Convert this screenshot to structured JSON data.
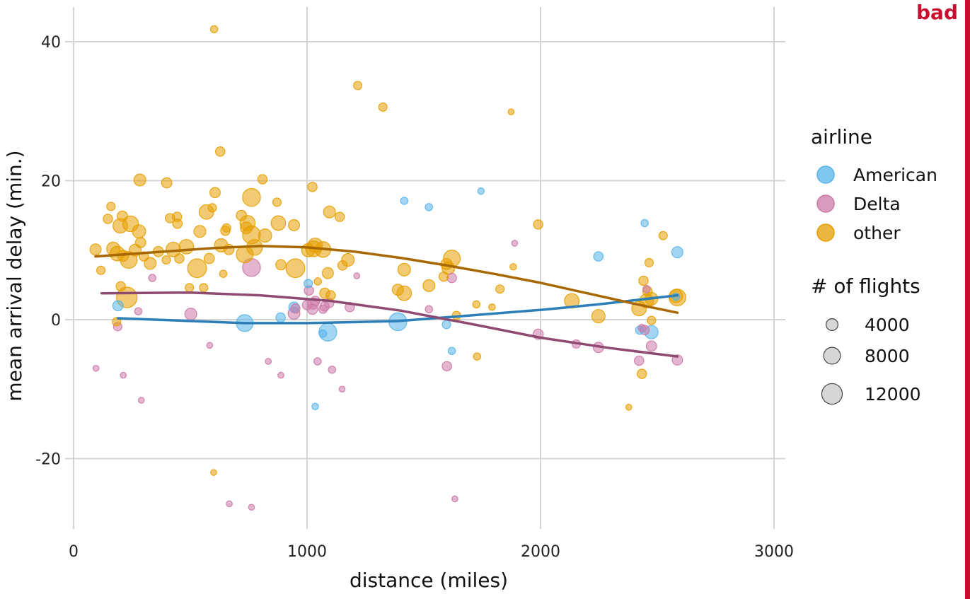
{
  "badge": "bad",
  "chart_data": {
    "type": "scatter",
    "xlabel": "distance (miles)",
    "ylabel": "mean arrival delay (min.)",
    "xlim": [
      0,
      3000
    ],
    "ylim": [
      -30,
      45
    ],
    "x_ticks": [
      0,
      1000,
      2000,
      3000
    ],
    "x_tick_labels": [
      "0",
      "1000",
      "2000",
      "3000"
    ],
    "y_ticks": [
      -20,
      0,
      20,
      40
    ],
    "y_tick_labels": [
      "-20",
      "0",
      "20",
      "40"
    ],
    "grid": true,
    "legend_placement": "right",
    "color_legend": {
      "title": "airline",
      "entries": [
        {
          "label": "American",
          "color": "#56B4E9"
        },
        {
          "label": "Delta",
          "color": "#CC79A7"
        },
        {
          "label": "other",
          "color": "#E69F00"
        }
      ]
    },
    "size_legend": {
      "title": "# of flights",
      "entries": [
        {
          "label": "4000",
          "value": 4000
        },
        {
          "label": "8000",
          "value": 8000
        },
        {
          "label": "12000",
          "value": 12000
        }
      ]
    },
    "series": [
      {
        "name": "American",
        "color": "#56B4E9",
        "trend_color": "#2C7FB8",
        "points": [
          [
            190,
            2,
            3000
          ],
          [
            733,
            -0.5,
            8000
          ],
          [
            887,
            0.3,
            2500
          ],
          [
            944,
            1.8,
            3000
          ],
          [
            1005,
            5.2,
            2000
          ],
          [
            1068,
            -2,
            1500
          ],
          [
            1089,
            -1.8,
            9000
          ],
          [
            1035,
            -12.5,
            1200
          ],
          [
            1389,
            -0.3,
            9000
          ],
          [
            1416,
            17.1,
            1500
          ],
          [
            1522,
            16.2,
            1500
          ],
          [
            1597,
            -0.7,
            2000
          ],
          [
            1620,
            -4.5,
            1500
          ],
          [
            1745,
            18.5,
            1200
          ],
          [
            2248,
            9.1,
            2500
          ],
          [
            2425,
            -1.5,
            2000
          ],
          [
            2446,
            13.9,
            1500
          ],
          [
            2475,
            -1.8,
            5000
          ],
          [
            2586,
            9.7,
            3500
          ],
          [
            2580,
            3.3,
            1500
          ]
        ],
        "trend": [
          [
            190,
            0.2
          ],
          [
            733,
            -0.5
          ],
          [
            1000,
            -0.5
          ],
          [
            1389,
            -0.2
          ],
          [
            1620,
            0.4
          ],
          [
            2000,
            1.4
          ],
          [
            2248,
            2.2
          ],
          [
            2586,
            3.5
          ]
        ]
      },
      {
        "name": "Delta",
        "color": "#CC79A7",
        "points": [
          [
            96,
            -7,
            1000
          ],
          [
            189,
            -1,
            2000
          ],
          [
            213,
            -8,
            1000
          ],
          [
            277,
            1.2,
            1500
          ],
          [
            290,
            -11.6,
            1000
          ],
          [
            337,
            6,
            1500
          ],
          [
            502,
            0.8,
            4000
          ],
          [
            583,
            -3.7,
            1000
          ],
          [
            667,
            -26.5,
            1000
          ],
          [
            762,
            7.5,
            9000
          ],
          [
            762,
            -27,
            1000
          ],
          [
            834,
            -6,
            1000
          ],
          [
            888,
            -8,
            1000
          ],
          [
            944,
            0.9,
            4000
          ],
          [
            950,
            1.6,
            2500
          ],
          [
            1000,
            2.1,
            2500
          ],
          [
            1008,
            4.2,
            2500
          ],
          [
            1023,
            1.5,
            3000
          ],
          [
            1026,
            2.3,
            3500
          ],
          [
            1035,
            2.7,
            2500
          ],
          [
            1045,
            -6,
            1500
          ],
          [
            1068,
            1.5,
            2000
          ],
          [
            1075,
            1.9,
            2500
          ],
          [
            1095,
            2.4,
            2500
          ],
          [
            1107,
            -7.2,
            1500
          ],
          [
            1150,
            -10,
            1000
          ],
          [
            1183,
            1.8,
            2500
          ],
          [
            1213,
            6.3,
            1000
          ],
          [
            1522,
            1.5,
            1500
          ],
          [
            1599,
            -6.7,
            2500
          ],
          [
            1620,
            6,
            2500
          ],
          [
            1633,
            -25.8,
            1000
          ],
          [
            1889,
            11,
            1000
          ],
          [
            1990,
            -2.1,
            3000
          ],
          [
            2153,
            -3.5,
            2000
          ],
          [
            2248,
            -4,
            3000
          ],
          [
            2422,
            -5.9,
            2500
          ],
          [
            2434,
            -1.2,
            1500
          ],
          [
            2446,
            -1.5,
            2500
          ],
          [
            2454,
            4.4,
            1500
          ],
          [
            2475,
            -3.8,
            3000
          ],
          [
            2586,
            -5.8,
            3000
          ]
        ],
        "trend": [
          [
            120,
            3.8
          ],
          [
            500,
            3.9
          ],
          [
            800,
            3.5
          ],
          [
            1100,
            2.7
          ],
          [
            1400,
            1.3
          ],
          [
            1700,
            -0.6
          ],
          [
            2000,
            -2.6
          ],
          [
            2300,
            -4.1
          ],
          [
            2586,
            -5.3
          ]
        ]
      },
      {
        "name": "other",
        "color": "#E69F00",
        "trend_color": "#A86800",
        "points": [
          [
            94,
            10.1,
            3500
          ],
          [
            117,
            7.1,
            2000
          ],
          [
            147,
            14.5,
            2500
          ],
          [
            160,
            16.3,
            2000
          ],
          [
            170,
            10.2,
            5000
          ],
          [
            184,
            -0.3,
            2000
          ],
          [
            187,
            9.5,
            6000
          ],
          [
            200,
            13.5,
            6000
          ],
          [
            202,
            4.8,
            2500
          ],
          [
            209,
            14.9,
            3000
          ],
          [
            212,
            9.2,
            3500
          ],
          [
            228,
            3.2,
            12000
          ],
          [
            236,
            8.6,
            8000
          ],
          [
            244,
            13.8,
            7000
          ],
          [
            264,
            10,
            4000
          ],
          [
            280,
            12.7,
            5000
          ],
          [
            287,
            11.1,
            3000
          ],
          [
            284,
            20.1,
            4000
          ],
          [
            301,
            9.1,
            2500
          ],
          [
            328,
            8.1,
            4000
          ],
          [
            363,
            9.8,
            3000
          ],
          [
            397,
            8.6,
            2000
          ],
          [
            399,
            19.7,
            3000
          ],
          [
            413,
            14.6,
            2500
          ],
          [
            427,
            10.1,
            6000
          ],
          [
            443,
            14.8,
            2500
          ],
          [
            445,
            13.8,
            2500
          ],
          [
            453,
            8.8,
            2500
          ],
          [
            483,
            10.5,
            6000
          ],
          [
            496,
            4.6,
            2000
          ],
          [
            529,
            7.4,
            10000
          ],
          [
            541,
            12.7,
            4000
          ],
          [
            557,
            4.6,
            2000
          ],
          [
            569,
            15.5,
            6000
          ],
          [
            581,
            8.8,
            3000
          ],
          [
            594,
            16.1,
            2000
          ],
          [
            600,
            -22,
            1000
          ],
          [
            602,
            41.8,
            1500
          ],
          [
            606,
            18.3,
            3000
          ],
          [
            628,
            24.2,
            2500
          ],
          [
            632,
            10.7,
            5000
          ],
          [
            641,
            6.6,
            1500
          ],
          [
            650,
            12.8,
            2500
          ],
          [
            655,
            13.2,
            2000
          ],
          [
            665,
            10.1,
            3000
          ],
          [
            719,
            15,
            3000
          ],
          [
            733,
            9.4,
            8000
          ],
          [
            740,
            13.2,
            4000
          ],
          [
            745,
            13.9,
            6500
          ],
          [
            762,
            17.6,
            9000
          ],
          [
            762,
            12.2,
            9000
          ],
          [
            775,
            10.4,
            7000
          ],
          [
            809,
            20.2,
            2500
          ],
          [
            820,
            12.1,
            5000
          ],
          [
            871,
            16.9,
            2000
          ],
          [
            877,
            13.9,
            6000
          ],
          [
            888,
            7.9,
            3000
          ],
          [
            944,
            13.6,
            3500
          ],
          [
            950,
            7.4,
            10000
          ],
          [
            1005,
            10,
            5000
          ],
          [
            1023,
            19.1,
            2500
          ],
          [
            1028,
            10.2,
            7000
          ],
          [
            1035,
            10.7,
            6000
          ],
          [
            1046,
            5.5,
            1500
          ],
          [
            1068,
            10.1,
            7000
          ],
          [
            1076,
            3.8,
            3000
          ],
          [
            1089,
            6.7,
            3500
          ],
          [
            1096,
            15.5,
            4000
          ],
          [
            1101,
            3.5,
            2500
          ],
          [
            1140,
            14.8,
            2500
          ],
          [
            1152,
            7.8,
            2500
          ],
          [
            1175,
            8.6,
            4500
          ],
          [
            1217,
            33.7,
            2000
          ],
          [
            1325,
            30.6,
            2000
          ],
          [
            1389,
            4.3,
            3500
          ],
          [
            1416,
            3.8,
            6000
          ],
          [
            1416,
            7.2,
            4500
          ],
          [
            1522,
            4.9,
            4000
          ],
          [
            1585,
            6.2,
            2500
          ],
          [
            1597,
            8,
            3500
          ],
          [
            1605,
            7.4,
            4500
          ],
          [
            1620,
            8.8,
            8000
          ],
          [
            1640,
            0.6,
            2000
          ],
          [
            1725,
            2.2,
            1500
          ],
          [
            1728,
            -5.3,
            1500
          ],
          [
            1792,
            1.8,
            1200
          ],
          [
            1826,
            4.4,
            2000
          ],
          [
            1874,
            29.9,
            1000
          ],
          [
            1883,
            7.6,
            1200
          ],
          [
            1990,
            13.7,
            2500
          ],
          [
            2134,
            2.7,
            6000
          ],
          [
            2248,
            0.5,
            5000
          ],
          [
            2378,
            -12.6,
            1000
          ],
          [
            2422,
            1.6,
            6000
          ],
          [
            2434,
            -7.8,
            2500
          ],
          [
            2441,
            5.6,
            2500
          ],
          [
            2454,
            2.7,
            5500
          ],
          [
            2458,
            4.1,
            2500
          ],
          [
            2465,
            8.2,
            2000
          ],
          [
            2475,
            -0.1,
            2000
          ],
          [
            2475,
            3,
            4500
          ],
          [
            2525,
            12.1,
            2000
          ],
          [
            2580,
            3.4,
            5000
          ],
          [
            2586,
            3.2,
            8000
          ]
        ],
        "trend": [
          [
            94,
            9.1
          ],
          [
            300,
            9.6
          ],
          [
            600,
            10.3
          ],
          [
            800,
            10.6
          ],
          [
            1000,
            10.4
          ],
          [
            1200,
            9.8
          ],
          [
            1400,
            8.9
          ],
          [
            1600,
            7.8
          ],
          [
            1800,
            6.6
          ],
          [
            2000,
            5.3
          ],
          [
            2200,
            3.8
          ],
          [
            2400,
            2.3
          ],
          [
            2586,
            1.0
          ]
        ]
      }
    ]
  }
}
